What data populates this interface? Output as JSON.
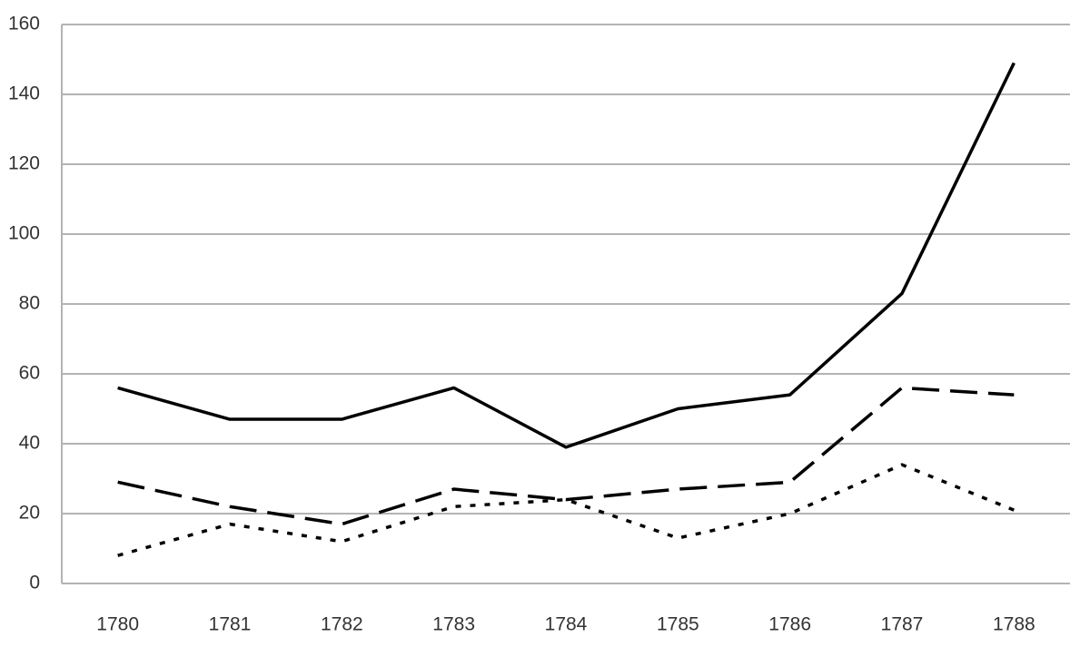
{
  "chart_data": {
    "type": "line",
    "categories": [
      "1780",
      "1781",
      "1782",
      "1783",
      "1784",
      "1785",
      "1786",
      "1787",
      "1788"
    ],
    "series": [
      {
        "color": "#000000",
        "dash": "solid",
        "values": [
          56,
          47,
          47,
          56,
          39,
          50,
          54,
          83,
          149
        ]
      },
      {
        "color": "#000000",
        "dash": "dashed",
        "values": [
          29,
          22,
          17,
          27,
          24,
          27,
          29,
          56,
          54
        ]
      },
      {
        "color": "#000000",
        "dash": "dotted",
        "values": [
          8,
          17,
          12,
          22,
          24,
          13,
          20,
          34,
          21
        ]
      }
    ],
    "ylim": [
      0,
      160
    ],
    "yticks": [
      0,
      20,
      40,
      60,
      80,
      100,
      120,
      140,
      160
    ],
    "grid": true
  }
}
